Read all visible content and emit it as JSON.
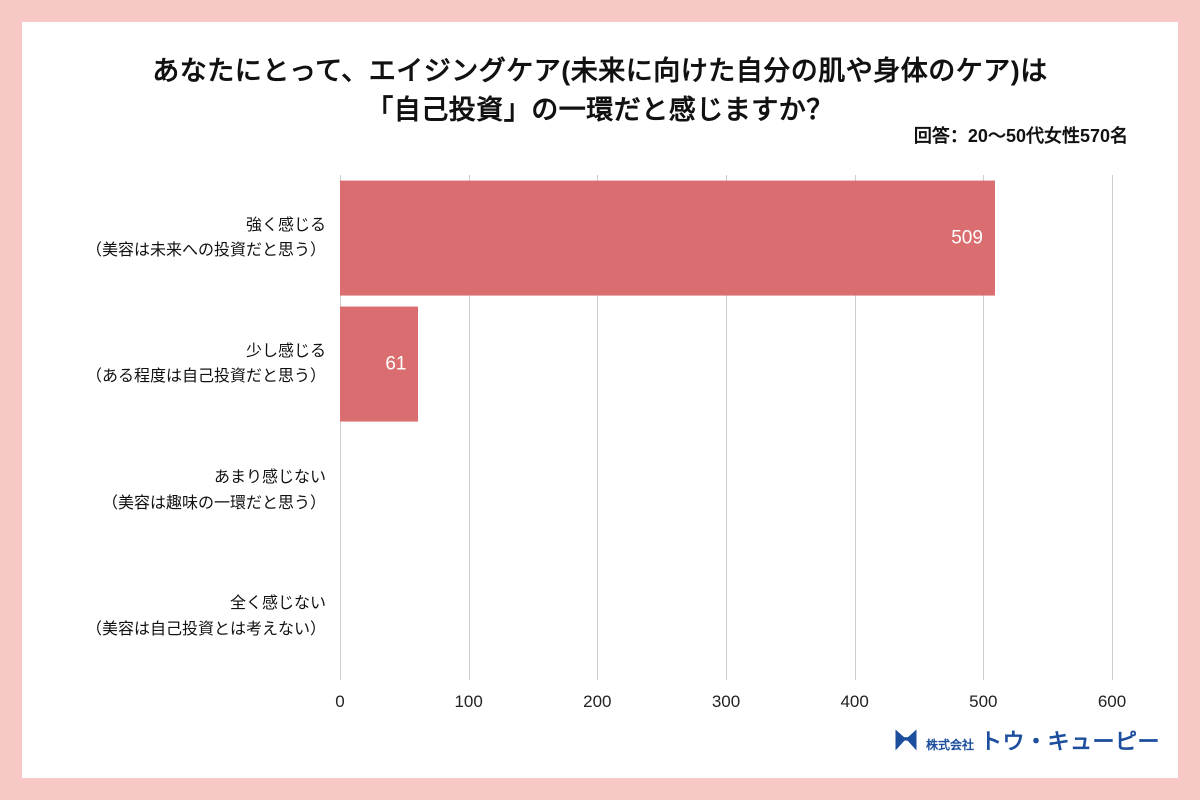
{
  "page": {
    "border_color": "#f8c8c6",
    "panel_bg": "#ffffff"
  },
  "header": {
    "title_line1": "あなたにとって、エイジングケア(未来に向けた自分の肌や身体のケア)は",
    "title_line2": "「自己投資」の一環だと感じますか？",
    "respondents": "回答：20〜50代女性570名"
  },
  "chart_data": {
    "type": "bar",
    "orientation": "horizontal",
    "title": "あなたにとって、エイジングケア(未来に向けた自分の肌や身体のケア)は「自己投資」の一環だと感じますか？",
    "subtitle": "回答：20〜50代女性570名",
    "categories": [
      {
        "line1": "強く感じる",
        "line2": "（美容は未来への投資だと思う）"
      },
      {
        "line1": "少し感じる",
        "line2": "（ある程度は自己投資だと思う）"
      },
      {
        "line1": "あまり感じない",
        "line2": "（美容は趣味の一環だと思う）"
      },
      {
        "line1": "全く感じない",
        "line2": "（美容は自己投資とは考えない）"
      }
    ],
    "values": [
      509,
      61,
      0,
      0
    ],
    "xlim": [
      0,
      600
    ],
    "x_ticks": [
      0,
      100,
      200,
      300,
      400,
      500,
      600
    ],
    "xlabel": "",
    "ylabel": "",
    "grid": true,
    "legend": false,
    "bar_color": "#d96d6f",
    "value_label_color": "#ffffff",
    "gridline_color": "#cccccc"
  },
  "footer": {
    "logo_prefix": "株式会社",
    "logo_name": "トウ・キューピー",
    "logo_color": "#1d4e9e",
    "logo_icon": "hourglass-bow-mark"
  }
}
